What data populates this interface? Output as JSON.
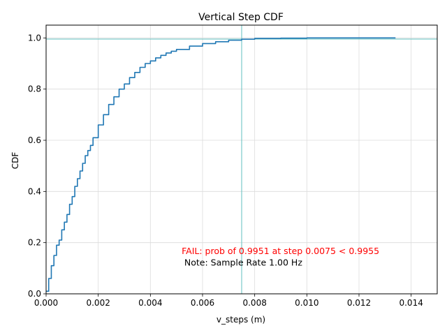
{
  "chart_data": {
    "type": "line",
    "title": "Vertical Step CDF",
    "xlabel": "v_steps (m)",
    "ylabel": "CDF",
    "xlim": [
      0,
      0.015
    ],
    "ylim": [
      0,
      1.05
    ],
    "x_ticks": [
      "0.000",
      "0.002",
      "0.004",
      "0.006",
      "0.008",
      "0.010",
      "0.012",
      "0.014"
    ],
    "x_tick_values": [
      0,
      0.002,
      0.004,
      0.006,
      0.008,
      0.01,
      0.012,
      0.014
    ],
    "y_ticks": [
      "0.0",
      "0.2",
      "0.4",
      "0.6",
      "0.8",
      "1.0"
    ],
    "y_tick_values": [
      0,
      0.2,
      0.4,
      0.6,
      0.8,
      1.0
    ],
    "grid": true,
    "series": [
      {
        "color": "#1f77b4",
        "x": [
          0,
          0.0001,
          0.0002,
          0.0003,
          0.0004,
          0.0005,
          0.0006,
          0.0007,
          0.0008,
          0.0009,
          0.001,
          0.0011,
          0.0012,
          0.0013,
          0.0014,
          0.0015,
          0.0016,
          0.0017,
          0.0018,
          0.002,
          0.0022,
          0.0024,
          0.0026,
          0.0028,
          0.003,
          0.0032,
          0.0034,
          0.0036,
          0.0038,
          0.004,
          0.0042,
          0.0044,
          0.0046,
          0.0048,
          0.005,
          0.0055,
          0.006,
          0.0065,
          0.007,
          0.0075,
          0.008,
          0.009,
          0.01,
          0.011,
          0.012,
          0.0134
        ],
        "y": [
          0.01,
          0.06,
          0.11,
          0.15,
          0.19,
          0.21,
          0.25,
          0.28,
          0.31,
          0.35,
          0.38,
          0.42,
          0.45,
          0.48,
          0.51,
          0.54,
          0.56,
          0.58,
          0.61,
          0.66,
          0.7,
          0.74,
          0.77,
          0.8,
          0.82,
          0.845,
          0.865,
          0.885,
          0.9,
          0.91,
          0.922,
          0.932,
          0.941,
          0.948,
          0.955,
          0.968,
          0.978,
          0.985,
          0.991,
          0.995,
          0.998,
          0.999,
          1.0,
          1.0,
          1.0,
          1.0
        ]
      }
    ],
    "reference_lines": {
      "color": "#5fbfbf",
      "vertical_x": 0.0075,
      "horizontal_y": 0.9955
    },
    "annotations": [
      {
        "text": "FAIL: prob of 0.9951 at step 0.0075 < 0.9955",
        "x": 0.0052,
        "y": 0.155,
        "color": "#ff0000"
      },
      {
        "text": "Note: Sample Rate 1.00 Hz",
        "x": 0.0053,
        "y": 0.11,
        "color": "#000000"
      }
    ]
  }
}
